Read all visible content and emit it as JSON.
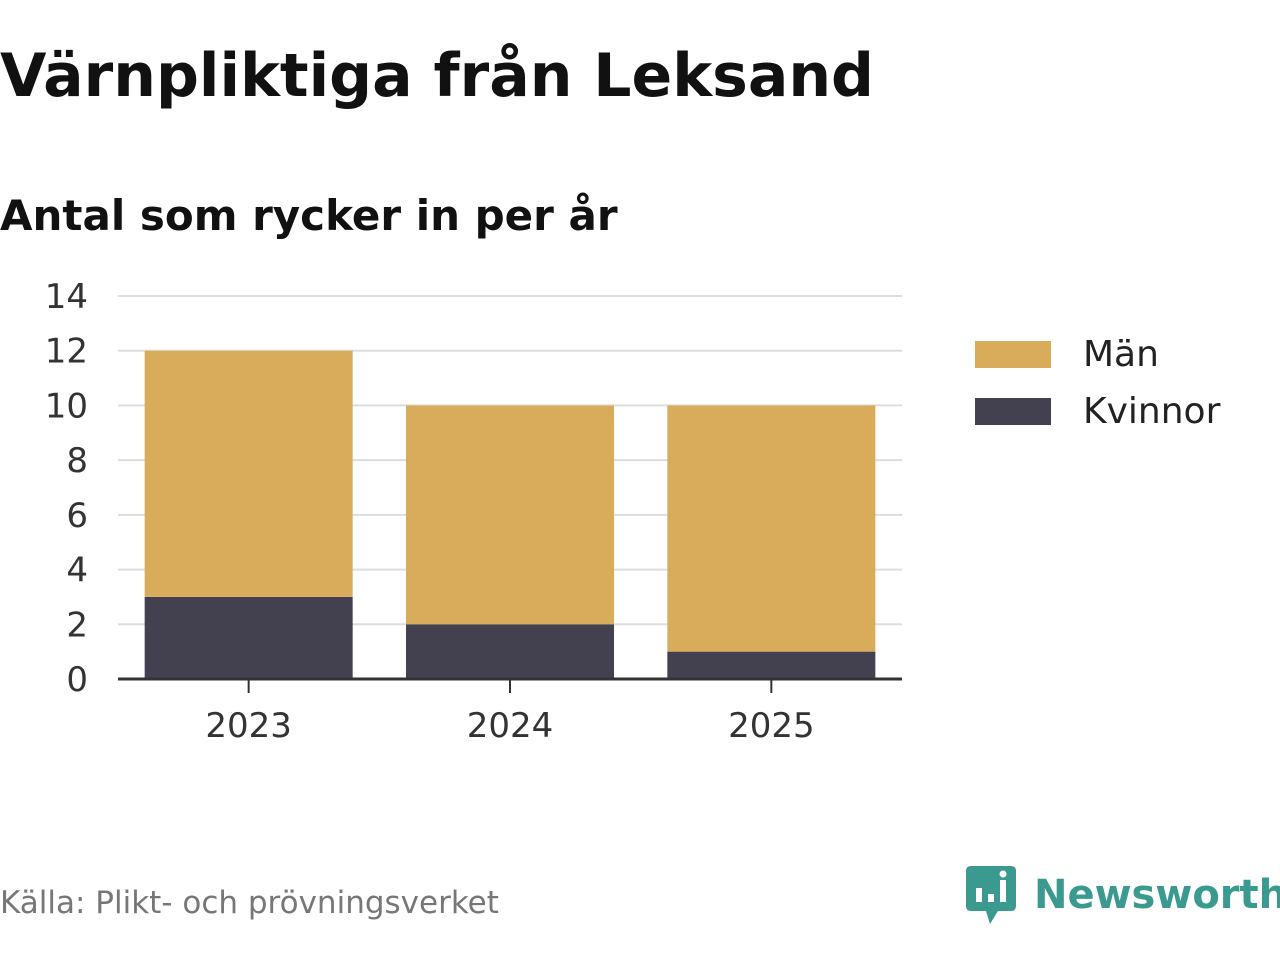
{
  "title": "Värnpliktiga från Leksand",
  "subtitle": "Antal som rycker in per år",
  "source": "Källa: Plikt- och prövningsverket",
  "brand": {
    "name": "Newsworthy",
    "logo_icon": "bar-chart-speech-bubble-icon",
    "color": "#3a9a8f"
  },
  "colors": {
    "man": "#d9ac5b",
    "kvinnor": "#43404f",
    "grid": "#dddddd",
    "axis": "#333333"
  },
  "chart_data": {
    "type": "bar",
    "stacked": true,
    "categories": [
      "2023",
      "2024",
      "2025"
    ],
    "series": [
      {
        "name": "Kvinnor",
        "values": [
          3,
          2,
          1
        ]
      },
      {
        "name": "Män",
        "values": [
          9,
          8,
          9
        ]
      }
    ],
    "ylim": [
      0,
      14
    ],
    "yticks": [
      "0",
      "2",
      "4",
      "6",
      "8",
      "10",
      "12",
      "14"
    ],
    "grid": true,
    "legend_position": "right",
    "legend": [
      "Män",
      "Kvinnor"
    ]
  }
}
